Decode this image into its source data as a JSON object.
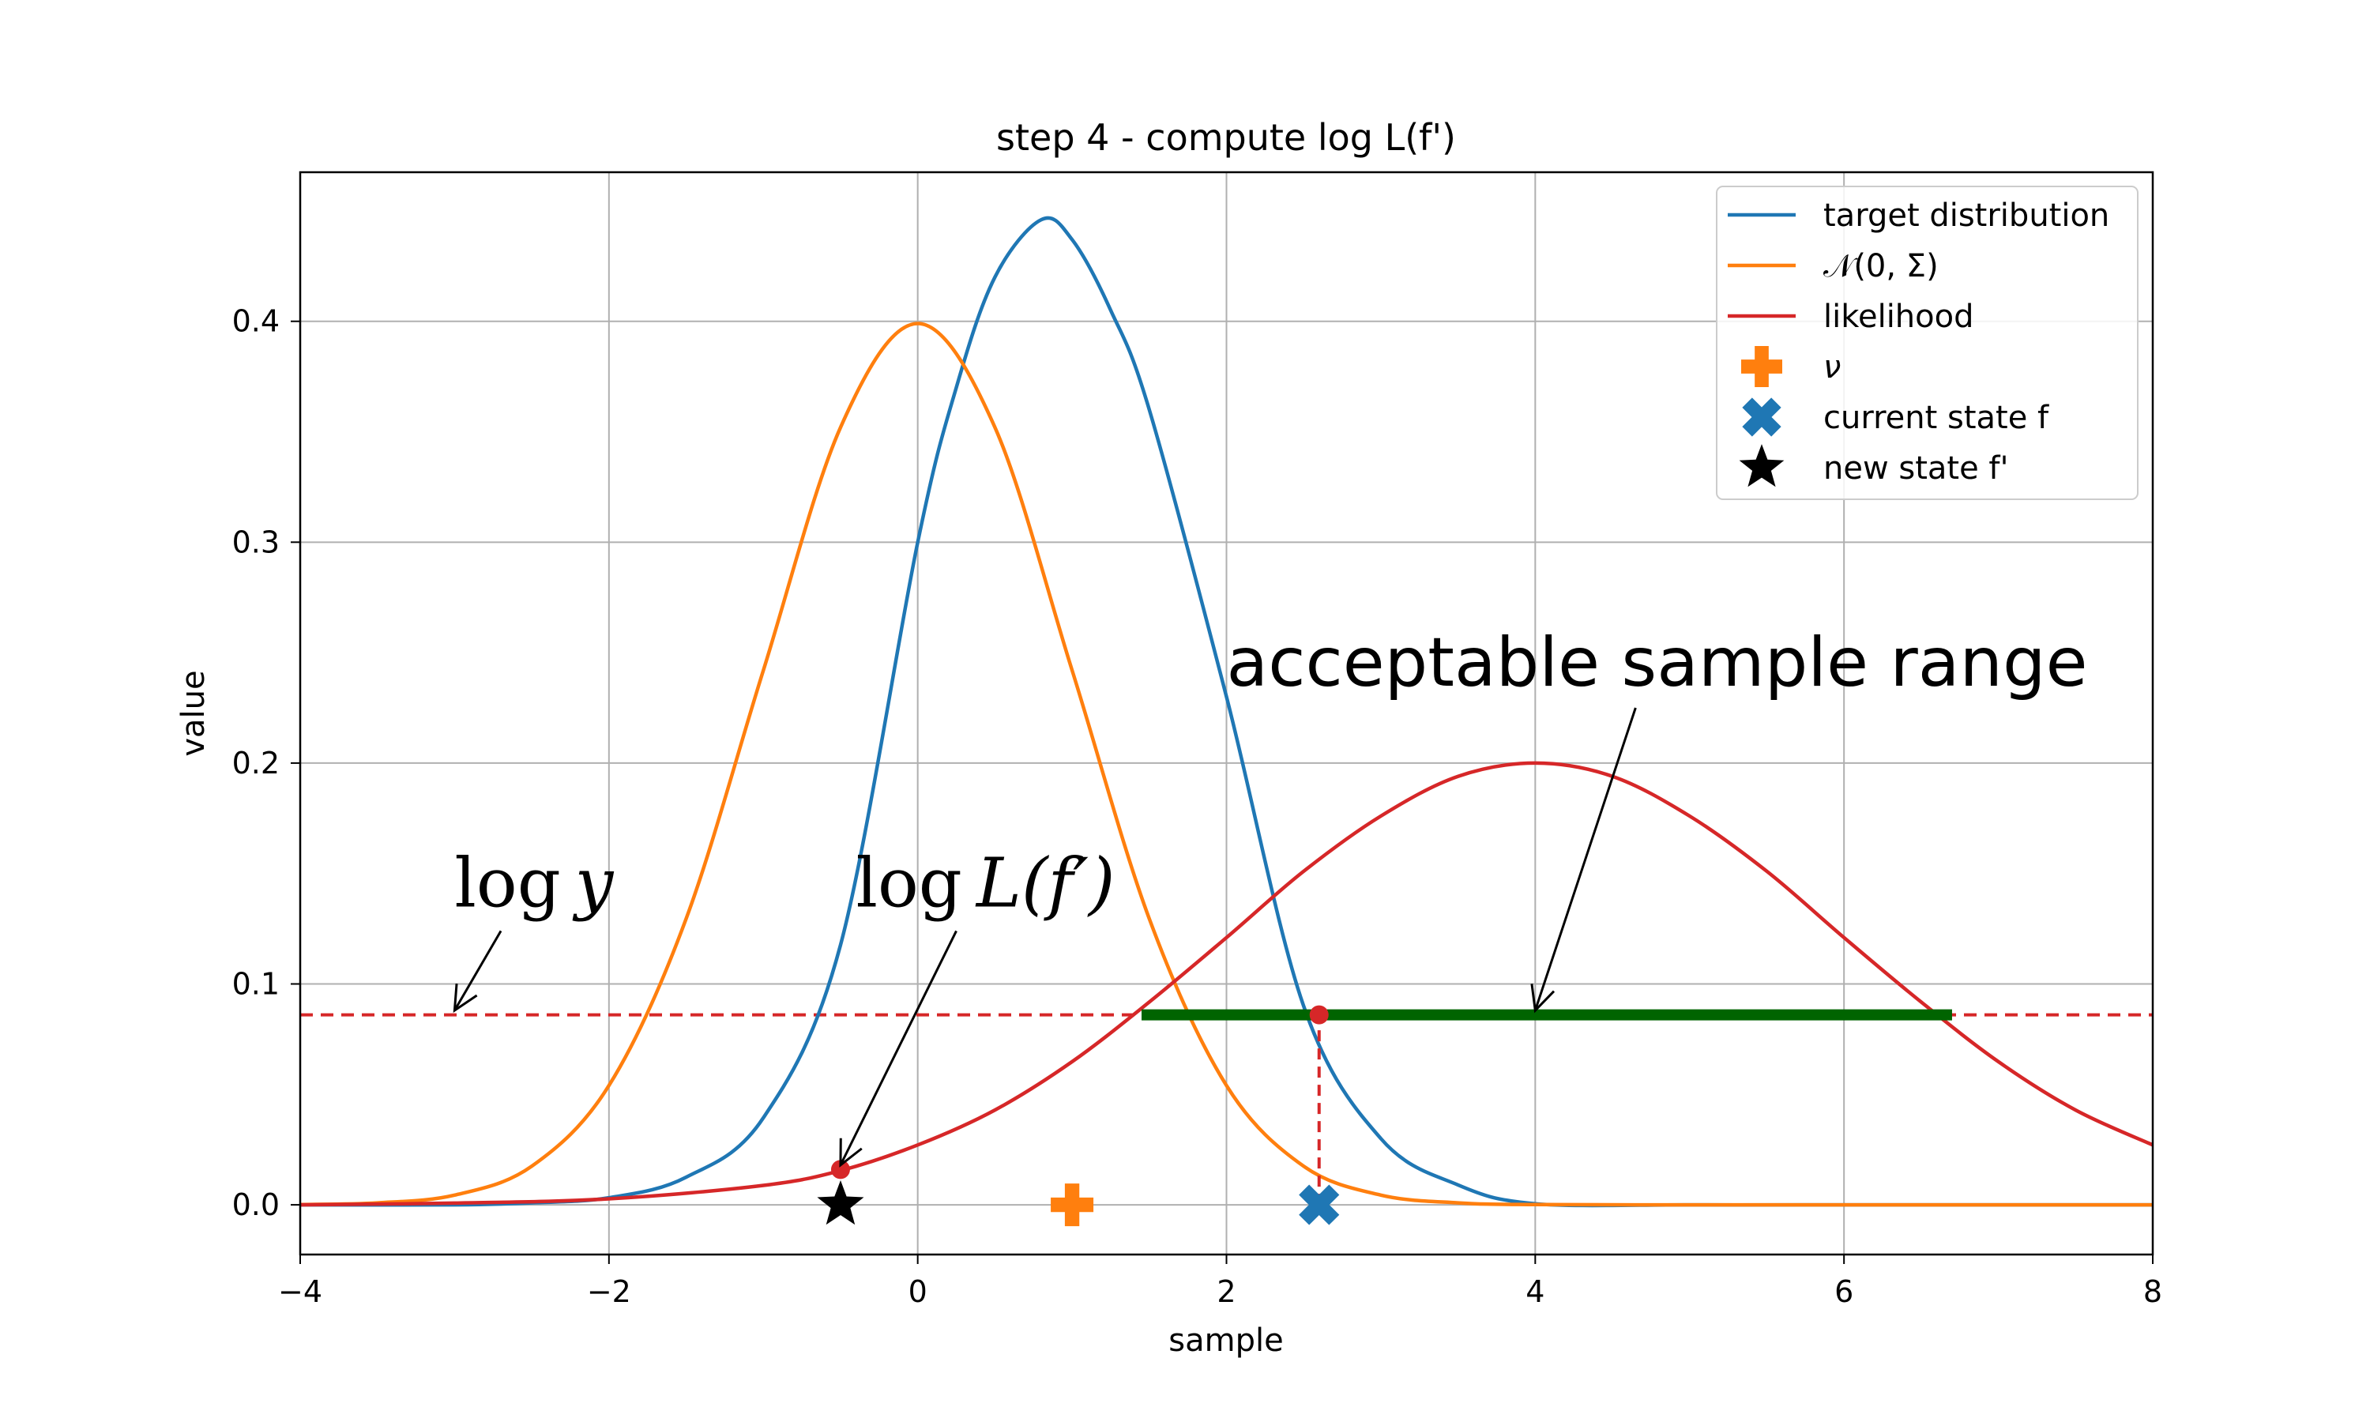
{
  "chart_data": {
    "type": "line",
    "title": "step 4 - compute log L(f')",
    "xlabel": "sample",
    "ylabel": "value",
    "xlim": [
      -4,
      8
    ],
    "ylim": [
      -0.0225,
      0.4675
    ],
    "grid": true,
    "legend_position": "top-right",
    "x_ticks": [
      -4,
      -2,
      0,
      2,
      4,
      6,
      8
    ],
    "x_tick_labels": [
      "−4",
      "−2",
      "0",
      "2",
      "4",
      "6",
      "8"
    ],
    "y_ticks": [
      0.0,
      0.1,
      0.2,
      0.3,
      0.4
    ],
    "y_tick_labels": [
      "0.0",
      "0.1",
      "0.2",
      "0.3",
      "0.4"
    ],
    "series": [
      {
        "name": "target distribution",
        "kind": "line",
        "color": "#1f77b4",
        "x": [
          -4,
          -3,
          -2.5,
          -2,
          -1.5,
          -1,
          -0.5,
          0,
          0.25,
          0.5,
          0.8,
          1.0,
          1.25,
          1.5,
          2,
          2.5,
          3,
          3.5,
          4,
          5,
          6,
          8
        ],
        "y": [
          0.0,
          0.0,
          0.0009,
          0.0032,
          0.0125,
          0.0394,
          0.1177,
          0.3,
          0.37,
          0.42,
          0.446,
          0.437,
          0.405,
          0.36,
          0.23,
          0.09,
          0.03,
          0.009,
          0.0005,
          0.0,
          0.0,
          0.0
        ]
      },
      {
        "name": "𝒩(0, Σ)",
        "kind": "line",
        "color": "#ff7f0e",
        "x": [
          -4,
          -3.5,
          -3,
          -2.5,
          -2,
          -1.5,
          -1,
          -0.5,
          0,
          0.5,
          1,
          1.5,
          2,
          2.5,
          3,
          3.5,
          4,
          5,
          6,
          8
        ],
        "y": [
          0.0001,
          0.0009,
          0.0044,
          0.0175,
          0.054,
          0.1295,
          0.242,
          0.352,
          0.399,
          0.352,
          0.242,
          0.1295,
          0.054,
          0.0175,
          0.0044,
          0.0009,
          0.0001,
          0.0,
          0.0,
          0.0
        ]
      },
      {
        "name": "likelihood",
        "kind": "line",
        "color": "#d62728",
        "x": [
          -4,
          -3,
          -2,
          -1,
          -0.5,
          0,
          0.5,
          1,
          1.5,
          2,
          2.5,
          3,
          3.5,
          4,
          4.5,
          5,
          5.5,
          6,
          6.5,
          7,
          7.5,
          8
        ],
        "y": [
          0.0,
          0.0008,
          0.0027,
          0.0088,
          0.0155,
          0.0271,
          0.0429,
          0.0648,
          0.0918,
          0.121,
          0.151,
          0.176,
          0.194,
          0.2,
          0.194,
          0.176,
          0.151,
          0.121,
          0.0918,
          0.0648,
          0.0429,
          0.0271
        ]
      }
    ],
    "threshold_line": {
      "y": 0.086,
      "color": "#d62728",
      "style": "dashed",
      "x": [
        -4,
        8
      ]
    },
    "acceptable_range": {
      "x": [
        1.45,
        6.7
      ],
      "y": 0.086,
      "color": "#006400"
    },
    "vertical_dashed": {
      "x": 2.6,
      "y": [
        0.0,
        0.086
      ],
      "color": "#d62728"
    },
    "dots": [
      {
        "x": -0.5,
        "y": 0.016,
        "color": "#d62728"
      },
      {
        "x": 2.6,
        "y": 0.086,
        "color": "#d62728"
      }
    ],
    "markers": [
      {
        "name": "ν",
        "label_math": true,
        "symbol": "plus",
        "color": "#ff7f0e",
        "x": 1.0,
        "y": 0.0
      },
      {
        "name": "current state f",
        "symbol": "x",
        "color": "#1f77b4",
        "x": 2.6,
        "y": 0.0
      },
      {
        "name": "new state f'",
        "symbol": "star",
        "color": "#000000",
        "x": -0.5,
        "y": 0.0
      }
    ],
    "annotations": [
      {
        "id": "log-y",
        "parts": [
          "log",
          "y"
        ],
        "text_x": -3.0,
        "text_y": 0.135,
        "arrow_from": [
          -2.7,
          0.124
        ],
        "arrow_to": [
          -3.0,
          0.088
        ]
      },
      {
        "id": "log-lf",
        "parts": [
          "log",
          "L(f′)"
        ],
        "text_x": -0.4,
        "text_y": 0.135,
        "arrow_from": [
          0.25,
          0.124
        ],
        "arrow_to": [
          -0.5,
          0.018
        ]
      },
      {
        "id": "acceptable",
        "parts": [
          "acceptable sample range"
        ],
        "text_x": 2.0,
        "text_y": 0.235,
        "arrow_from": [
          4.65,
          0.225
        ],
        "arrow_to": [
          4.0,
          0.088
        ]
      }
    ]
  }
}
